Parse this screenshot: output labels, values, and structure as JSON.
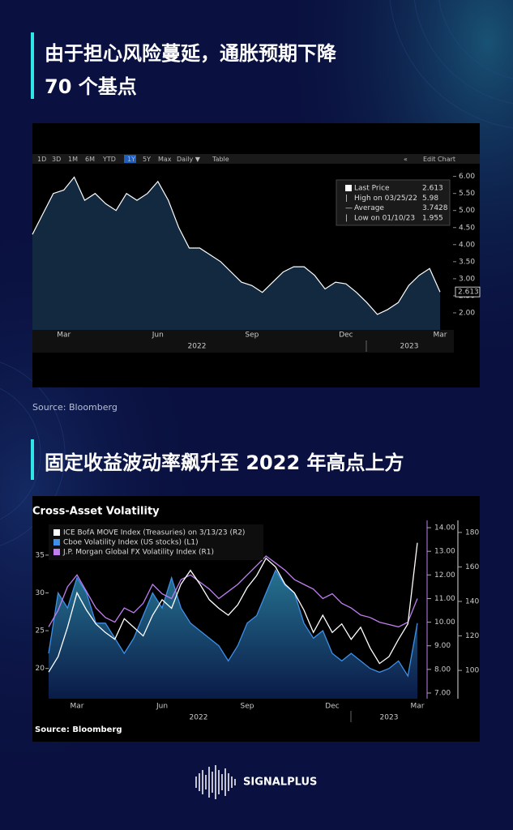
{
  "brand": "SIGNALPLUS",
  "chart_data": [
    {
      "type": "line",
      "heading": [
        "由于担心风险蔓延，通胀预期下降",
        "70 个基点"
      ],
      "source": "Source: Bloomberg",
      "toolbar": [
        "1D",
        "3D",
        "1M",
        "6M",
        "YTD",
        "1Y",
        "5Y",
        "Max",
        "Daily ▼",
        "Table"
      ],
      "active_tool": 5,
      "toolbar_right": [
        "«",
        "Edit Chart"
      ],
      "legend": [
        {
          "label": "Last Price",
          "value": 2.613
        },
        {
          "label": "High on 03/25/22",
          "value": 5.98
        },
        {
          "label": "Average",
          "value": 3.7428
        },
        {
          "label": "Low on 01/10/23",
          "value": 1.955
        }
      ],
      "categories": [
        null,
        null,
        null,
        "Mar",
        null,
        null,
        null,
        null,
        null,
        null,
        null,
        null,
        "Jun",
        null,
        null,
        null,
        null,
        null,
        null,
        null,
        null,
        "Sep",
        null,
        null,
        null,
        null,
        null,
        null,
        null,
        null,
        "Dec",
        null,
        null,
        null,
        null,
        null,
        null,
        null,
        null,
        "Mar"
      ],
      "year_labels": [
        "2022",
        "2023"
      ],
      "values": [
        4.3,
        4.9,
        5.5,
        5.6,
        5.98,
        5.3,
        5.5,
        5.2,
        5.0,
        5.5,
        5.3,
        5.5,
        5.85,
        5.3,
        4.5,
        3.9,
        3.9,
        3.7,
        3.5,
        3.2,
        2.9,
        2.8,
        2.6,
        2.9,
        3.2,
        3.35,
        3.35,
        3.1,
        2.7,
        2.9,
        2.85,
        2.6,
        2.3,
        1.955,
        2.1,
        2.3,
        2.8,
        3.1,
        3.3,
        2.613
      ],
      "color": "#ffffff",
      "ylim": [
        1.5,
        6.3
      ],
      "yticks": [
        {
          "value": 2,
          "label": "2.00"
        },
        {
          "value": 2.5,
          "label": "2.50"
        },
        {
          "value": 3,
          "label": "3.00"
        },
        {
          "value": 3.5,
          "label": "3.50"
        },
        {
          "value": 4,
          "label": "4.00"
        },
        {
          "value": 4.5,
          "label": "4.50"
        },
        {
          "value": 5,
          "label": "5.00"
        },
        {
          "value": 5.5,
          "label": "5.50"
        },
        {
          "value": 6,
          "label": "6.00"
        }
      ]
    },
    {
      "type": "line",
      "heading": [
        "固定收益波动率飙升至 2022 年高点上方"
      ],
      "title": "Cross-Asset Volatility",
      "source": "Source: Bloomberg",
      "categories": [
        null,
        null,
        null,
        "Mar",
        null,
        null,
        null,
        null,
        null,
        null,
        null,
        null,
        "Jun",
        null,
        null,
        null,
        null,
        null,
        null,
        null,
        null,
        "Sep",
        null,
        null,
        null,
        null,
        null,
        null,
        null,
        null,
        "Dec",
        null,
        null,
        null,
        null,
        null,
        null,
        null,
        null,
        "Mar"
      ],
      "year_labels": [
        "2022",
        "2023"
      ],
      "series": [
        {
          "name": "ICE BofA MOVE Index (Treasuries) on 3/13/23 (R2)",
          "color": "#ffffff",
          "axis": "y3",
          "values": [
            99,
            108,
            125,
            145,
            135,
            127,
            122,
            118,
            130,
            125,
            120,
            132,
            141,
            136,
            150,
            158,
            150,
            141,
            136,
            132,
            138,
            148,
            155,
            165,
            160,
            150,
            145,
            135,
            122,
            132,
            122,
            127,
            118,
            125,
            113,
            104,
            108,
            118,
            127,
            174
          ]
        },
        {
          "name": "Cboe Volatility Index (US stocks) (L1)",
          "color": "#3f8fe8",
          "axis": "y",
          "values": [
            22,
            30,
            28,
            32,
            30,
            26,
            26,
            24,
            22,
            24,
            27,
            30,
            28,
            32,
            28,
            26,
            25,
            24,
            23,
            21,
            23,
            26,
            27,
            30,
            33,
            31,
            30,
            26,
            24,
            25,
            22,
            21,
            22,
            21,
            20,
            19.5,
            20,
            21,
            19,
            26
          ]
        },
        {
          "name": "J.P. Morgan Global FX Volatility Index (R1)",
          "color": "#c07ff0",
          "axis": "y2",
          "values": [
            9.8,
            10.5,
            11.5,
            12,
            11.3,
            10.6,
            10.2,
            10.0,
            10.6,
            10.4,
            10.8,
            11.6,
            11.2,
            11.0,
            11.8,
            12.0,
            11.7,
            11.4,
            11.0,
            11.3,
            11.6,
            12.0,
            12.4,
            12.8,
            12.5,
            12.2,
            11.8,
            11.6,
            11.4,
            11.0,
            11.2,
            10.8,
            10.6,
            10.3,
            10.2,
            10.0,
            9.9,
            9.8,
            10.0,
            11.0
          ]
        }
      ],
      "ylim": [
        16,
        39.6
      ],
      "yticks": [
        20,
        25,
        30,
        35
      ],
      "y2lim": [
        6.76,
        14.31
      ],
      "y2ticks": [
        {
          "value": 7,
          "label": "7.00"
        },
        {
          "value": 8,
          "label": "8.00"
        },
        {
          "value": 9,
          "label": "9.00"
        },
        {
          "value": 10,
          "label": "10.00"
        },
        {
          "value": 11,
          "label": "11.00"
        },
        {
          "value": 12,
          "label": "12.00"
        },
        {
          "value": 13,
          "label": "13.00"
        },
        {
          "value": 14,
          "label": "14.00"
        }
      ],
      "y3lim": [
        83.6,
        187
      ],
      "y3ticks": [
        100,
        120,
        140,
        160,
        180
      ]
    }
  ]
}
